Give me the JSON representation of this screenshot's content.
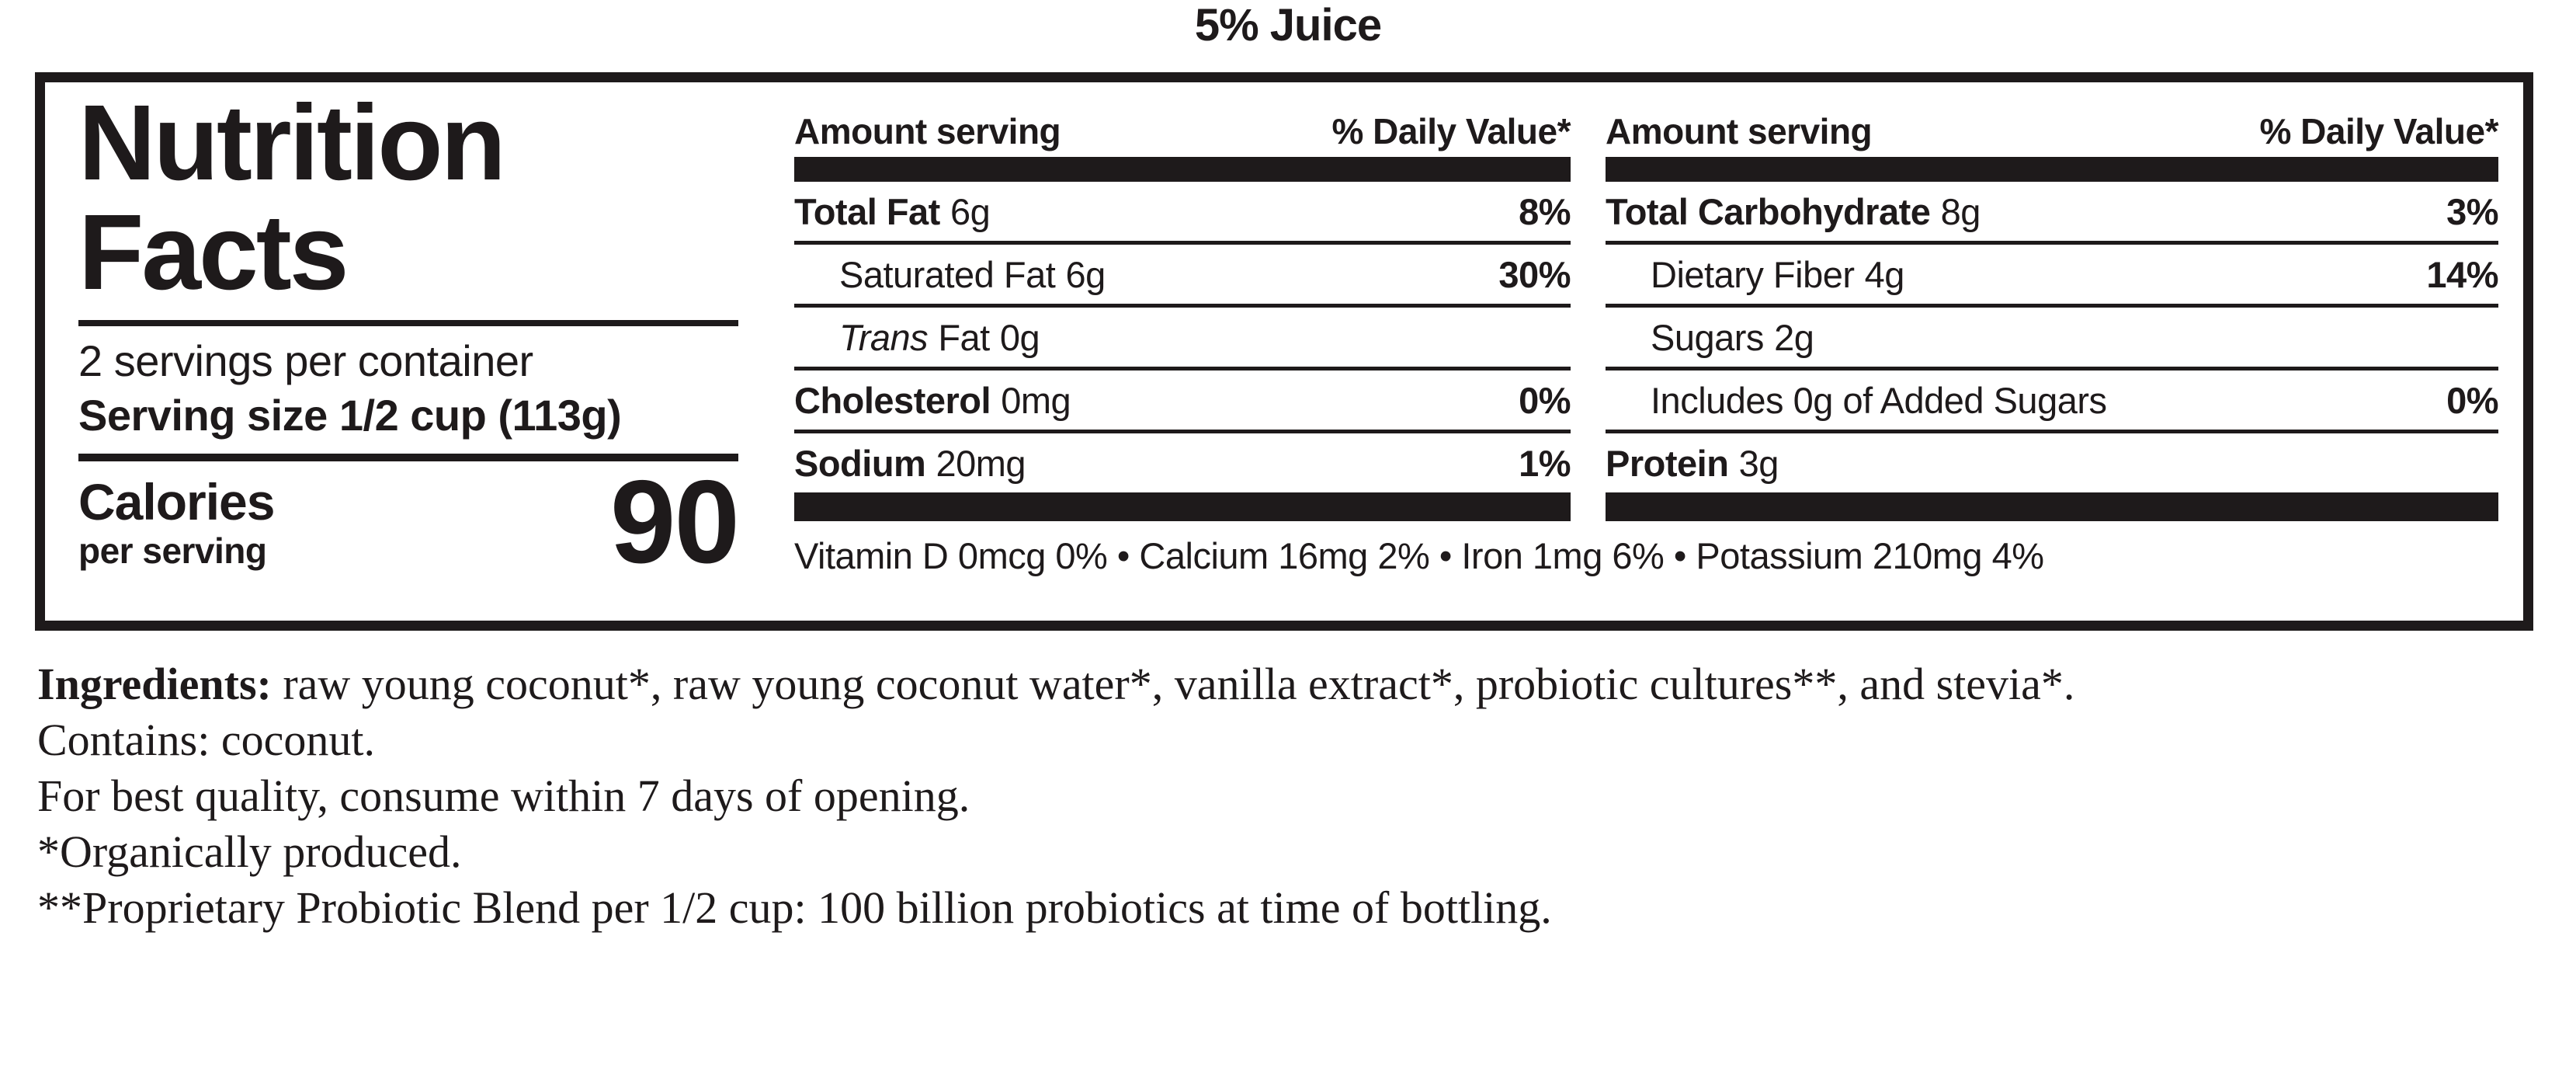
{
  "title": "5% Juice",
  "colors": {
    "ink": "#1e1a1b",
    "background": "#ffffff"
  },
  "panel": {
    "heading": [
      "Nutrition",
      "Facts"
    ],
    "servings_per_container": "2 servings per container",
    "serving_size": "Serving size 1/2 cup (113g)",
    "calories": {
      "label": "Calories",
      "sublabel": "per serving",
      "value": "90"
    },
    "columns": [
      {
        "header": {
          "amount": "Amount serving",
          "dv": "% Daily Value*"
        },
        "rows": [
          {
            "label": "Total Fat",
            "amount": "6g",
            "dv": "8%"
          },
          {
            "label": "Saturated Fat",
            "amount": "6g",
            "dv": "30%"
          },
          {
            "label_italic": "Trans",
            "label_rest": "Fat",
            "amount": "0g",
            "dv": ""
          },
          {
            "label": "Cholesterol",
            "amount": "0mg",
            "dv": "0%"
          },
          {
            "label": "Sodium",
            "amount": "20mg",
            "dv": "1%"
          }
        ]
      },
      {
        "header": {
          "amount": "Amount serving",
          "dv": "% Daily Value*"
        },
        "rows": [
          {
            "label": "Total Carbohydrate",
            "amount": "8g",
            "dv": "3%"
          },
          {
            "label": "Dietary Fiber",
            "amount": "4g",
            "dv": "14%"
          },
          {
            "label": "Sugars",
            "amount": "2g",
            "dv": ""
          },
          {
            "label": "Includes 0g of Added Sugars",
            "amount": "",
            "dv": "0%"
          },
          {
            "label": "Protein",
            "amount": "3g",
            "dv": ""
          }
        ]
      }
    ],
    "micronutrients": "Vitamin D 0mcg 0% • Calcium 16mg 2% • Iron 1mg 6% • Potassium 210mg 4%"
  },
  "footnotes": {
    "ingredients_label": "Ingredients:",
    "ingredients_text": " raw young coconut*, raw young coconut water*, vanilla extract*, probiotic cultures**, and stevia*.",
    "lines": [
      "Contains: coconut.",
      "For best quality, consume within 7 days of opening.",
      "*Organically produced.",
      "**Proprietary Probiotic Blend per 1/2 cup: 100 billion probiotics at time of bottling."
    ]
  }
}
